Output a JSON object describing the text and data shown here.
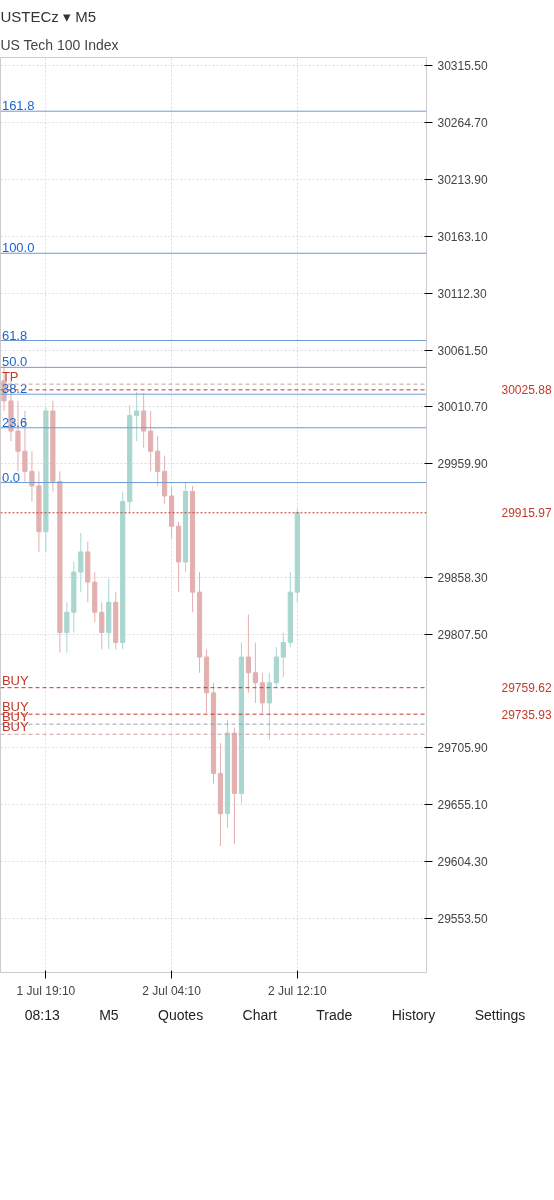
{
  "chart_data": {
    "type": "candlestick",
    "title": "USTECz ▾ M5",
    "subtitle": "US Tech 100 Index",
    "categories": [
      null,
      null,
      null,
      null,
      null,
      null,
      "1 Jul 19:10",
      null,
      null,
      null,
      null,
      null,
      null,
      null,
      null,
      null,
      null,
      null,
      null,
      null,
      null,
      null,
      null,
      null,
      "2 Jul 04:10",
      null,
      null,
      null,
      null,
      null,
      null,
      null,
      null,
      null,
      null,
      null,
      null,
      null,
      null,
      null,
      null,
      null,
      "2 Jul 12:10",
      null,
      null,
      null,
      null,
      null,
      null,
      null,
      null,
      null,
      null,
      null,
      null,
      null,
      null,
      null,
      null,
      null,
      null
    ],
    "ohlc": [
      [
        30034,
        30048,
        30007,
        30016
      ],
      [
        30016,
        30034,
        29980,
        29989
      ],
      [
        29989,
        30016,
        29953,
        29971
      ],
      [
        29971,
        30007,
        29944,
        29953
      ],
      [
        29953,
        29971,
        29926,
        29940
      ],
      [
        29940,
        29953,
        29881,
        29899
      ],
      [
        29899,
        30010,
        29881,
        30007
      ],
      [
        30007,
        30016,
        29935,
        29944
      ],
      [
        29944,
        29953,
        29791,
        29809
      ],
      [
        29809,
        29836,
        29791,
        29827
      ],
      [
        29827,
        29872,
        29809,
        29863
      ],
      [
        29863,
        29898,
        29845,
        29881
      ],
      [
        29881,
        29890,
        29836,
        29854
      ],
      [
        29854,
        29863,
        29818,
        29827
      ],
      [
        29827,
        29836,
        29794,
        29809
      ],
      [
        29809,
        29857,
        29794,
        29836
      ],
      [
        29836,
        29845,
        29794,
        29800
      ],
      [
        29800,
        29935,
        29794,
        29926
      ],
      [
        29926,
        30012,
        29917,
        30003
      ],
      [
        30003,
        30024,
        29980,
        30007
      ],
      [
        30007,
        30023,
        29974,
        29989
      ],
      [
        29989,
        30007,
        29953,
        29971
      ],
      [
        29971,
        29985,
        29940,
        29953
      ],
      [
        29953,
        29967,
        29924,
        29931
      ],
      [
        29931,
        29940,
        29893,
        29904
      ],
      [
        29904,
        29908,
        29845,
        29872
      ],
      [
        29872,
        29944,
        29863,
        29935
      ],
      [
        29935,
        29940,
        29827,
        29845
      ],
      [
        29845,
        29863,
        29773,
        29787
      ],
      [
        29787,
        29794,
        29737,
        29755
      ],
      [
        29755,
        29764,
        29674,
        29683
      ],
      [
        29683,
        29710,
        29618,
        29647
      ],
      [
        29647,
        29731,
        29634,
        29719
      ],
      [
        29719,
        29724,
        29620,
        29665
      ],
      [
        29665,
        29800,
        29656,
        29787
      ],
      [
        29787,
        29825,
        29755,
        29773
      ],
      [
        29773,
        29800,
        29746,
        29764
      ],
      [
        29764,
        29773,
        29737,
        29746
      ],
      [
        29746,
        29773,
        29713,
        29764
      ],
      [
        29764,
        29796,
        29760,
        29787
      ],
      [
        29787,
        29809,
        29769,
        29800
      ],
      [
        29800,
        29863,
        29796,
        29845
      ],
      [
        29845,
        29920,
        29836,
        29915.97
      ],
      null,
      null,
      null,
      null,
      null,
      null,
      null,
      null,
      null,
      null,
      null,
      null,
      null,
      null,
      null,
      null,
      null,
      null
    ],
    "colors": [
      "#e3b0b0",
      "#e3b0b0",
      "#e3b0b0",
      "#e3b0b0",
      "#e3b0b0",
      "#e3b0b0",
      "#a9d6cf",
      "#e3b0b0",
      "#e3b0b0",
      "#a9d6cf",
      "#a9d6cf",
      "#a9d6cf",
      "#e3b0b0",
      "#e3b0b0",
      "#e3b0b0",
      "#a9d6cf",
      "#e3b0b0",
      "#a9d6cf",
      "#a9d6cf",
      "#a9d6cf",
      "#e3b0b0",
      "#e3b0b0",
      "#e3b0b0",
      "#e3b0b0",
      "#e3b0b0",
      "#e3b0b0",
      "#a9d6cf",
      "#e3b0b0",
      "#e3b0b0",
      "#e3b0b0",
      "#e3b0b0",
      "#e3b0b0",
      "#a9d6cf",
      "#e3b0b0",
      "#a9d6cf",
      "#e3b0b0",
      "#e3b0b0",
      "#e3b0b0",
      "#a9d6cf",
      "#a9d6cf",
      "#a9d6cf",
      "#a9d6cf",
      "#a9d6cf",
      null,
      null,
      null,
      null,
      null,
      null,
      null,
      null,
      null,
      null,
      null,
      null,
      null,
      null,
      null,
      null,
      null,
      null
    ],
    "ylim": [
      29505,
      30323
    ],
    "yticks": [
      {
        "value": 30315.5,
        "label": "30315.50"
      },
      {
        "value": 30264.7,
        "label": "30264.70"
      },
      {
        "value": 30213.9,
        "label": "30213.90"
      },
      {
        "value": 30163.1,
        "label": "30163.10"
      },
      {
        "value": 30112.3,
        "label": "30112.30"
      },
      {
        "value": 30061.5,
        "label": "30061.50"
      },
      {
        "value": 30010.7,
        "label": "30010.70"
      },
      {
        "value": 29959.9,
        "label": "29959.90"
      },
      {
        "value": 29858.3,
        "label": "29858.30"
      },
      {
        "value": 29807.5,
        "label": "29807.50"
      },
      {
        "value": 29705.9,
        "label": "29705.90"
      },
      {
        "value": 29655.1,
        "label": "29655.10"
      },
      {
        "value": 29604.3,
        "label": "29604.30"
      },
      {
        "value": 29553.5,
        "label": "29553.50"
      }
    ],
    "grid": true,
    "ref_lines": [
      {
        "axis": "y",
        "value": 30275,
        "label": null,
        "color": "#6f9bd6",
        "line_style": "solid"
      },
      {
        "axis": "y",
        "value": 30148,
        "label": null,
        "color": "#6f9bd6",
        "line_style": "solid"
      },
      {
        "axis": "y",
        "value": 30070,
        "label": null,
        "color": "#6f9bd6",
        "line_style": "solid"
      },
      {
        "axis": "y",
        "value": 30046,
        "label": null,
        "color": "#6f9bd6",
        "line_style": "solid"
      },
      {
        "axis": "y",
        "value": 30022,
        "label": null,
        "color": "#6f9bd6",
        "line_style": "solid"
      },
      {
        "axis": "y",
        "value": 29992,
        "label": null,
        "color": "#6f9bd6",
        "line_style": "solid"
      },
      {
        "axis": "y",
        "value": 29943,
        "label": null,
        "color": "#6f9bd6",
        "line_style": "solid"
      },
      {
        "axis": "y",
        "value": 30031,
        "label": null,
        "color": "#c9a0a0",
        "line_style": "dashed"
      },
      {
        "axis": "y",
        "value": 30025.88,
        "label": "30025.88",
        "color": "#c0392b",
        "line_style": "dashed"
      },
      {
        "axis": "y",
        "value": 29915.97,
        "label": "29915.97",
        "color": "#c0392b",
        "line_style": "dotted"
      },
      {
        "axis": "y",
        "value": 29759.62,
        "label": "29759.62",
        "color": "#c0392b",
        "line_style": "dashed"
      },
      {
        "axis": "y",
        "value": 29735.93,
        "label": "29735.93",
        "color": "#c0392b",
        "line_style": "dashed"
      },
      {
        "axis": "y",
        "value": 29727,
        "label": null,
        "color": "#9aa0b0",
        "line_style": "dashed"
      },
      {
        "axis": "y",
        "value": 29718,
        "label": null,
        "color": "#c9a0a0",
        "line_style": "dashed"
      }
    ],
    "annotations": [
      "161.8",
      "100.0",
      "61.8",
      "50.0",
      "38.2",
      "23.6",
      "0.0",
      {
        "text": "TP",
        "y": 30031
      },
      {
        "text": "BUY",
        "y": 29759.62
      },
      {
        "text": "BUY",
        "y": 29735.93
      },
      {
        "text": "BUY",
        "y": 29727
      },
      {
        "text": "BUY",
        "y": 29718
      },
      "08:13",
      "M5",
      "Quotes",
      "Chart",
      "Trade",
      "History",
      "Settings"
    ]
  }
}
